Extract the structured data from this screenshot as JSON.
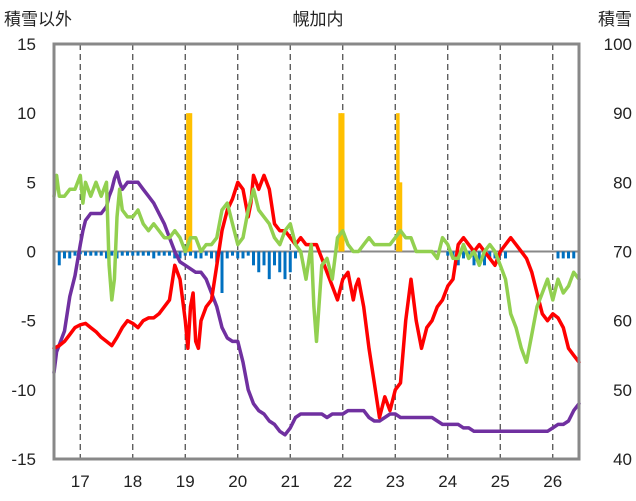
{
  "chart_data": {
    "type": "line",
    "title": "幌加内",
    "left_axis_label": "積雪以外",
    "right_axis_label": "積雪",
    "ylim_left": [
      -15,
      15
    ],
    "ylim_right": [
      40,
      100
    ],
    "y_ticks_left": [
      "15",
      "10",
      "5",
      "0",
      "-5",
      "-10",
      "-15"
    ],
    "y_ticks_right": [
      "100",
      "90",
      "80",
      "70",
      "60",
      "50",
      "40"
    ],
    "xlim": [
      16.5,
      26.5
    ],
    "x_ticks": [
      "17",
      "18",
      "19",
      "20",
      "21",
      "22",
      "23",
      "24",
      "25",
      "26"
    ],
    "grid": "dashed-vertical-at-day-boundaries",
    "series": [
      {
        "axis": "right",
        "color": "#7030a0",
        "x": [
          16.5,
          16.55,
          16.6,
          16.7,
          16.8,
          16.9,
          17.0,
          17.05,
          17.1,
          17.2,
          17.3,
          17.4,
          17.5,
          17.55,
          17.6,
          17.65,
          17.7,
          17.75,
          17.8,
          17.9,
          18.0,
          18.1,
          18.2,
          18.3,
          18.4,
          18.5,
          18.6,
          18.7,
          18.8,
          18.9,
          19.0,
          19.1,
          19.2,
          19.3,
          19.4,
          19.5,
          19.6,
          19.7,
          19.8,
          19.9,
          20.0,
          20.1,
          20.2,
          20.3,
          20.4,
          20.5,
          20.6,
          20.7,
          20.8,
          20.9,
          21.0,
          21.1,
          21.2,
          21.3,
          21.4,
          21.5,
          21.6,
          21.7,
          21.8,
          21.9,
          22.0,
          22.1,
          22.2,
          22.3,
          22.4,
          22.5,
          22.6,
          22.7,
          22.8,
          22.9,
          23.0,
          23.1,
          23.2,
          23.3,
          23.4,
          23.5,
          23.6,
          23.7,
          23.8,
          23.9,
          24.0,
          24.1,
          24.2,
          24.3,
          24.4,
          24.5,
          24.6,
          24.7,
          24.8,
          24.9,
          25.0,
          25.1,
          25.2,
          25.3,
          25.4,
          25.5,
          25.6,
          25.7,
          25.8,
          25.9,
          26.0,
          26.1,
          26.2,
          26.3,
          26.4,
          26.5
        ],
        "y": [
          52.5,
          55.5,
          56.5,
          58.5,
          63.5,
          66.5,
          71,
          73,
          74.5,
          75.5,
          75.5,
          75.5,
          76.5,
          78,
          79,
          80.5,
          81.5,
          80,
          79,
          80,
          80,
          80,
          79,
          78,
          77,
          75.5,
          74,
          72,
          70,
          68.5,
          68,
          67.5,
          67,
          67,
          66,
          64,
          62,
          59,
          57.5,
          57,
          57,
          54,
          50,
          48,
          47,
          46.5,
          45.5,
          45,
          44,
          43.5,
          44.5,
          46,
          46.5,
          46.5,
          46.5,
          46.5,
          46.5,
          46,
          46.5,
          46.5,
          46.5,
          47,
          47,
          47,
          47,
          46,
          45.5,
          45.5,
          46,
          46.5,
          46.5,
          46,
          46,
          46,
          46,
          46,
          46,
          46,
          45.5,
          45,
          45,
          45,
          45,
          44.5,
          44.5,
          44,
          44,
          44,
          44,
          44,
          44,
          44,
          44,
          44,
          44,
          44,
          44,
          44,
          44,
          44,
          44.5,
          45,
          45,
          45.5,
          47,
          48
        ]
      },
      {
        "axis": "left",
        "color": "#ff0000",
        "x": [
          16.5,
          16.6,
          16.7,
          16.8,
          16.9,
          17.0,
          17.1,
          17.2,
          17.3,
          17.4,
          17.5,
          17.6,
          17.7,
          17.8,
          17.9,
          18.0,
          18.1,
          18.2,
          18.3,
          18.4,
          18.5,
          18.6,
          18.7,
          18.8,
          18.9,
          19.0,
          19.05,
          19.1,
          19.15,
          19.2,
          19.25,
          19.3,
          19.4,
          19.5,
          19.6,
          19.7,
          19.8,
          19.9,
          20.0,
          20.1,
          20.2,
          20.25,
          20.3,
          20.4,
          20.5,
          20.6,
          20.7,
          20.8,
          20.9,
          21.0,
          21.1,
          21.2,
          21.3,
          21.4,
          21.5,
          21.6,
          21.7,
          21.8,
          21.9,
          22.0,
          22.1,
          22.2,
          22.25,
          22.3,
          22.4,
          22.5,
          22.6,
          22.7,
          22.8,
          22.9,
          23.0,
          23.1,
          23.2,
          23.3,
          23.4,
          23.5,
          23.6,
          23.7,
          23.8,
          23.9,
          24.0,
          24.1,
          24.2,
          24.3,
          24.4,
          24.5,
          24.6,
          24.7,
          24.8,
          24.9,
          25.0,
          25.1,
          25.2,
          25.3,
          25.4,
          25.5,
          25.6,
          25.7,
          25.8,
          25.9,
          26.0,
          26.1,
          26.2,
          26.3,
          26.4,
          26.5
        ],
        "y": [
          -7,
          -6.8,
          -6.5,
          -6,
          -5.5,
          -5.3,
          -5.2,
          -5.5,
          -5.8,
          -6.2,
          -6.5,
          -6.8,
          -6.2,
          -5.5,
          -5,
          -5.2,
          -5.5,
          -5,
          -4.8,
          -4.8,
          -4.5,
          -4,
          -3.5,
          -1,
          -2,
          -5,
          -7,
          -4,
          -3,
          -6.5,
          -7,
          -5,
          -4,
          -3.5,
          -1,
          1.5,
          3,
          3.8,
          5,
          4.5,
          2.5,
          3.5,
          5.5,
          4.5,
          5.5,
          4.5,
          2,
          1.5,
          1.5,
          1,
          0.5,
          1,
          0.5,
          0.5,
          0.5,
          -0.5,
          -1.5,
          -2.5,
          -3.5,
          -2,
          -1.5,
          -3.5,
          -2.5,
          -2,
          -4,
          -7,
          -9.5,
          -12,
          -10.5,
          -11.5,
          -10,
          -9.5,
          -5,
          -2,
          -5,
          -7,
          -5.5,
          -5,
          -4,
          -3.5,
          -2.5,
          -2,
          0.5,
          1,
          0.5,
          0,
          0.5,
          0,
          -0.5,
          -1,
          0,
          0.5,
          1,
          0.5,
          0,
          -0.5,
          -1.5,
          -3,
          -4.5,
          -5,
          -4.5,
          -4.8,
          -5.5,
          -7,
          -7.5,
          -8
        ]
      },
      {
        "axis": "left",
        "color": "#92d050",
        "x": [
          16.5,
          16.55,
          16.6,
          16.7,
          16.8,
          16.9,
          17.0,
          17.05,
          17.1,
          17.2,
          17.3,
          17.4,
          17.5,
          17.55,
          17.6,
          17.65,
          17.7,
          17.75,
          17.8,
          17.9,
          18.0,
          18.1,
          18.2,
          18.3,
          18.4,
          18.5,
          18.6,
          18.7,
          18.8,
          18.9,
          19.0,
          19.1,
          19.2,
          19.3,
          19.4,
          19.5,
          19.6,
          19.7,
          19.8,
          19.9,
          20.0,
          20.1,
          20.2,
          20.3,
          20.4,
          20.5,
          20.6,
          20.7,
          20.8,
          20.9,
          21.0,
          21.1,
          21.2,
          21.3,
          21.4,
          21.45,
          21.5,
          21.6,
          21.7,
          21.8,
          21.9,
          22.0,
          22.1,
          22.2,
          22.3,
          22.4,
          22.5,
          22.6,
          22.7,
          22.8,
          22.9,
          23.0,
          23.1,
          23.2,
          23.3,
          23.4,
          23.5,
          23.6,
          23.7,
          23.8,
          23.9,
          24.0,
          24.1,
          24.2,
          24.3,
          24.4,
          24.5,
          24.6,
          24.7,
          24.8,
          24.9,
          25.0,
          25.1,
          25.2,
          25.3,
          25.4,
          25.5,
          25.6,
          25.7,
          25.8,
          25.9,
          26.0,
          26.1,
          26.2,
          26.3,
          26.4,
          26.5
        ],
        "y": [
          4,
          5.5,
          4,
          4,
          4.5,
          4.5,
          5.5,
          3.5,
          5,
          4,
          5,
          4,
          5,
          -1,
          -3.5,
          -2,
          2.5,
          4.5,
          3,
          2.5,
          2.5,
          3,
          2,
          1.5,
          2,
          1.5,
          1,
          1,
          1.5,
          1,
          0,
          1,
          1,
          0,
          0.5,
          0.5,
          1,
          3,
          3.5,
          2,
          0.5,
          1,
          3,
          4.5,
          3,
          2.5,
          2,
          1,
          0.5,
          1.5,
          2,
          0.5,
          0,
          -2,
          0.5,
          -4,
          -6.5,
          -1,
          -0.5,
          -2,
          1,
          1.5,
          0.5,
          0,
          0,
          0.5,
          1,
          0.5,
          0.5,
          0.5,
          0.5,
          1,
          1.5,
          1,
          1,
          0,
          0,
          0,
          0,
          -0.5,
          1,
          0.5,
          -0.5,
          -0.5,
          0.5,
          -0.5,
          0,
          -1,
          0,
          0.5,
          0,
          -1,
          -2,
          -4.5,
          -5.5,
          -7,
          -8,
          -6,
          -4,
          -3,
          -2,
          -3.5,
          -2,
          -3,
          -2.5,
          -1.5,
          -2
        ]
      }
    ],
    "bars_snow": {
      "axis": "left",
      "color": "#ffc000",
      "x": [
        19.05,
        19.1,
        21.95,
        22.0,
        23.05,
        23.1
      ],
      "y": [
        10,
        10,
        10,
        10,
        10,
        5
      ]
    },
    "bars_blue": {
      "axis": "left",
      "color": "#0070c0",
      "x": [
        16.6,
        16.7,
        16.8,
        16.9,
        17.0,
        17.1,
        17.2,
        17.3,
        17.4,
        17.5,
        17.6,
        17.7,
        17.8,
        17.9,
        18.0,
        18.1,
        18.2,
        18.3,
        18.4,
        18.5,
        18.6,
        18.7,
        18.8,
        18.9,
        19.0,
        19.1,
        19.2,
        19.3,
        19.4,
        19.5,
        19.6,
        19.7,
        19.8,
        19.9,
        20.0,
        20.1,
        20.2,
        20.3,
        20.4,
        20.5,
        20.6,
        20.7,
        20.8,
        20.9,
        21.0,
        21.1,
        24.0,
        24.1,
        24.2,
        24.3,
        24.4,
        24.5,
        24.6,
        24.7,
        24.8,
        24.9,
        25.0,
        25.1,
        26.1,
        26.2,
        26.3,
        26.4
      ],
      "y": [
        -1,
        -0.5,
        -0.5,
        -0.3,
        -0.2,
        -0.3,
        -0.3,
        -0.3,
        -0.3,
        -0.5,
        -0.3,
        -0.5,
        -0.3,
        -0.3,
        -0.3,
        -0.3,
        -0.3,
        -0.3,
        -0.5,
        -0.3,
        -0.3,
        -0.3,
        -0.5,
        -0.5,
        -0.3,
        -0.3,
        -0.5,
        -0.5,
        -0.3,
        -0.5,
        -0.8,
        -3,
        -0.5,
        -0.3,
        -0.5,
        -0.5,
        -0.3,
        -1,
        -1.5,
        -1,
        -2,
        -1,
        -1.5,
        -2,
        -1.5,
        -0.5,
        -0.3,
        -0.5,
        -1,
        -0.5,
        -0.5,
        -1,
        -1,
        -1,
        -0.5,
        -0.5,
        -0.3,
        -0.5,
        -0.5,
        -0.5,
        -0.5,
        -0.5
      ]
    }
  }
}
